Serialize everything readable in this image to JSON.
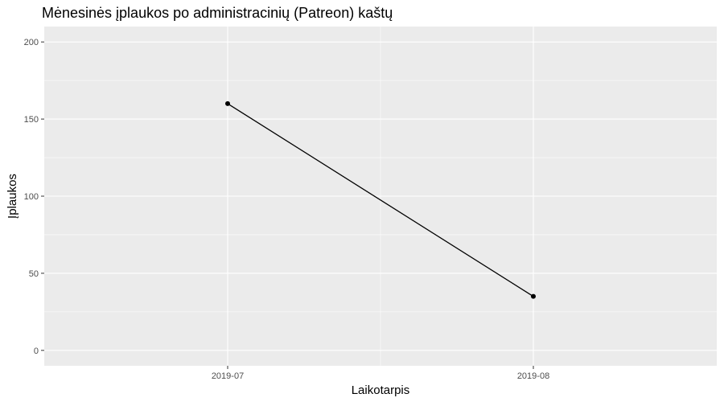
{
  "chart_data": {
    "type": "line",
    "title": "Mėnesinės įplaukos po administracinių (Patreon) kaštų",
    "xlabel": "Laikotarpis",
    "ylabel": "Įplaukos",
    "categories": [
      "2019-07",
      "2019-08"
    ],
    "series": [
      {
        "values": [
          160,
          35
        ]
      }
    ],
    "ylim": [
      -10,
      210
    ],
    "yticks": [
      0,
      50,
      100,
      150,
      200
    ],
    "grid": true,
    "legend": "none",
    "colors": {
      "panel": "#ebebeb",
      "grid": "#ffffff",
      "line": "#000000",
      "point": "#000000"
    }
  }
}
